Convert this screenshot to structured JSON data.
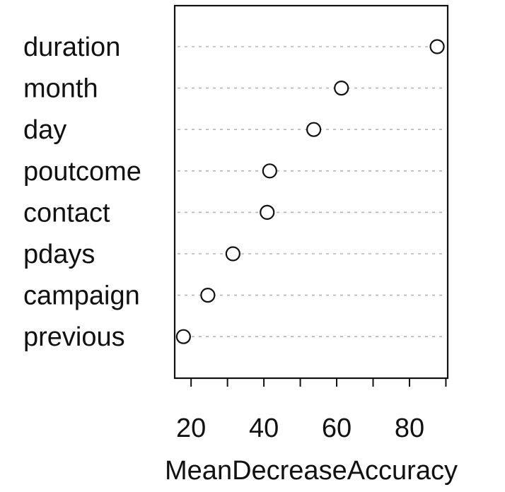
{
  "chart_data": {
    "type": "scatter",
    "subtype": "dotchart",
    "title": "",
    "xlabel": "MeanDecreaseAccuracy",
    "ylabel": "",
    "categories": [
      "duration",
      "month",
      "day",
      "poutcome",
      "contact",
      "pdays",
      "campaign",
      "previous"
    ],
    "values": [
      87.6,
      61.3,
      53.7,
      41.6,
      40.9,
      31.5,
      24.6,
      17.9
    ],
    "xlim": [
      15.5,
      90.5
    ],
    "xticks": [
      20,
      30,
      40,
      50,
      60,
      70,
      80,
      90
    ],
    "xtick_labels": [
      "20",
      "",
      "40",
      "",
      "60",
      "",
      "80",
      ""
    ],
    "grid": "dotted horizontal guide lines",
    "marker": "open circle",
    "colors": {
      "axis": "#111111",
      "grid": "#b5b5b5",
      "marker_fill": "#ffffff",
      "marker_stroke": "#111111"
    }
  }
}
